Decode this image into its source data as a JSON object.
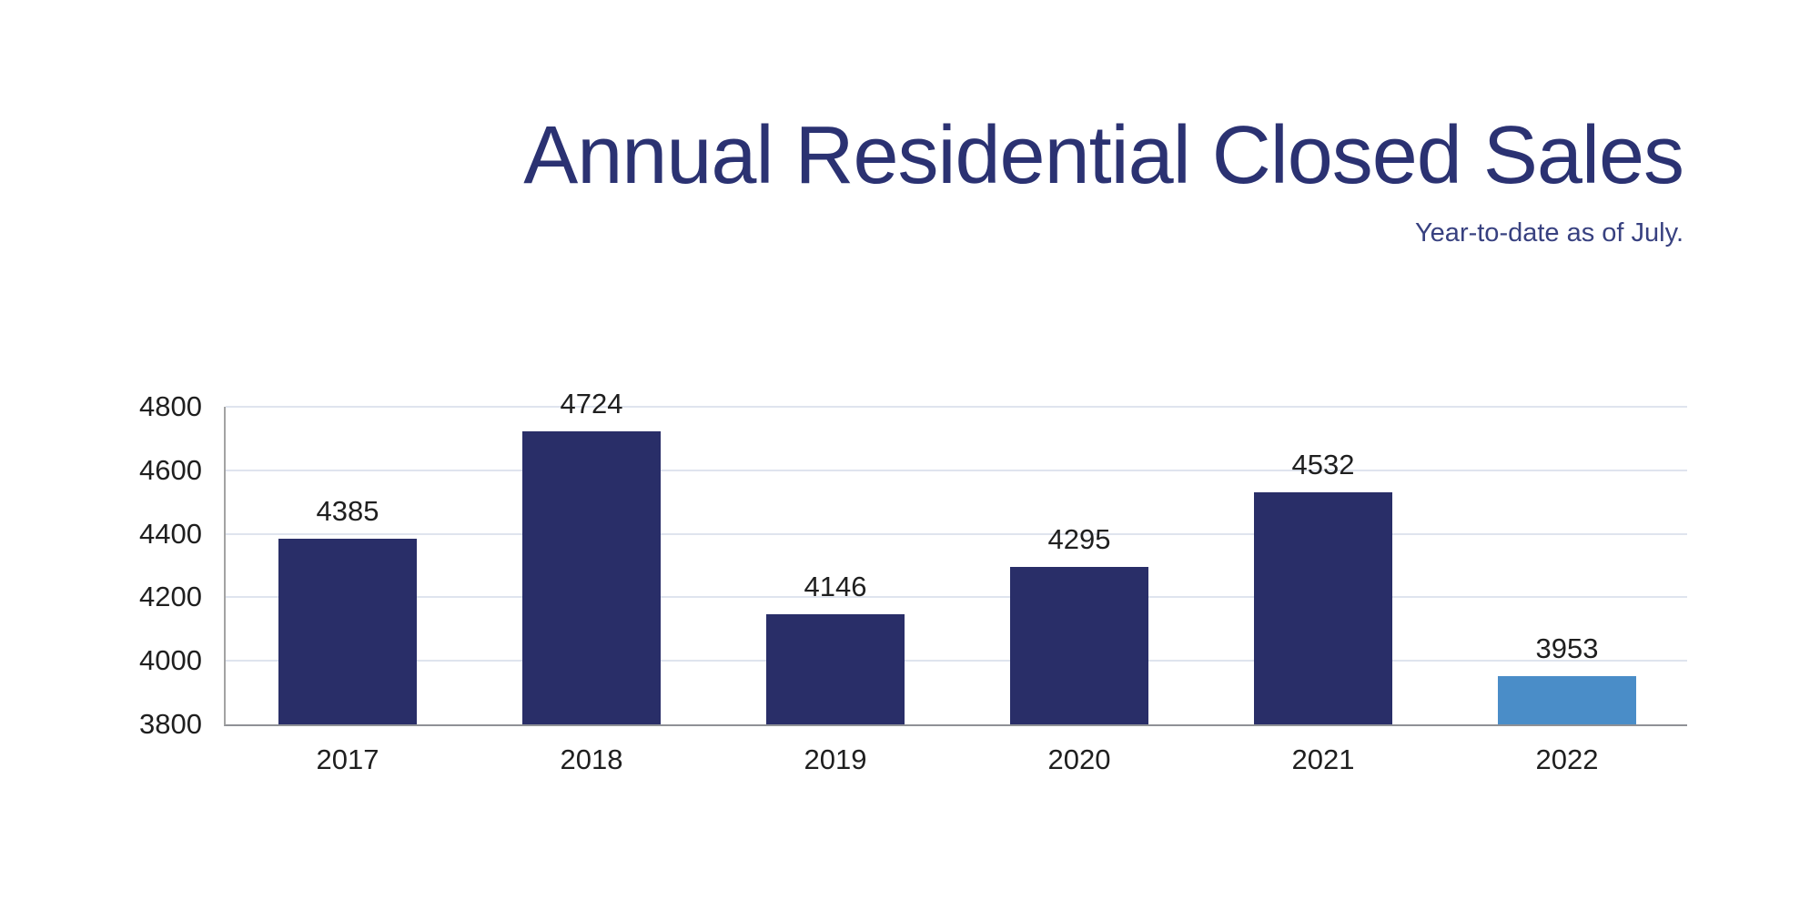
{
  "header": {
    "title": "Annual Residential Closed Sales",
    "subtitle": "Year-to-date as of July."
  },
  "colors": {
    "title": "#2b3272",
    "subtitle": "#384180",
    "bar_navy": "#292e68",
    "bar_highlight": "#4a8dc8",
    "gridline": "#dfe4ee",
    "axis": "#a3a3a3",
    "label_text": "#1f1f1f"
  },
  "chart_data": {
    "type": "bar",
    "title": "Annual Residential Closed Sales",
    "subtitle": "Year-to-date as of July.",
    "categories": [
      "2017",
      "2018",
      "2019",
      "2020",
      "2021",
      "2022"
    ],
    "values": [
      4385,
      4724,
      4146,
      4295,
      4532,
      3953
    ],
    "bar_colors": [
      "#292e68",
      "#292e68",
      "#292e68",
      "#292e68",
      "#292e68",
      "#4a8dc8"
    ],
    "yticks": [
      4800,
      4600,
      4400,
      4200,
      4000,
      3800
    ],
    "ylim": [
      3800,
      4800
    ],
    "xlabel": "",
    "ylabel": "",
    "grid": "horizontal",
    "legend": "none",
    "data_labels": "above-bars"
  }
}
